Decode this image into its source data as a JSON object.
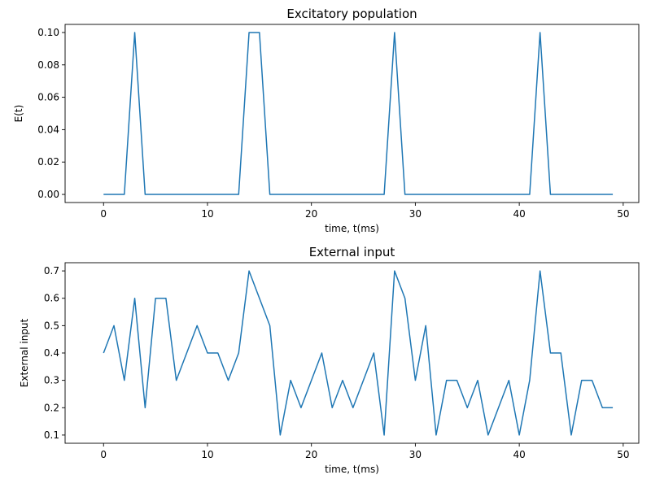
{
  "chart_data": [
    {
      "type": "line",
      "title": "Excitatory population",
      "xlabel": "time, t(ms)",
      "ylabel": "E(t)",
      "xlim": [
        -3.7,
        51.5
      ],
      "ylim": [
        -0.005,
        0.105
      ],
      "xticks": [
        0,
        10,
        20,
        30,
        40,
        50
      ],
      "xtick_labels": [
        "0",
        "10",
        "20",
        "30",
        "40",
        "50"
      ],
      "yticks": [
        0.0,
        0.02,
        0.04,
        0.06,
        0.08,
        0.1
      ],
      "ytick_labels": [
        "0.00",
        "0.02",
        "0.04",
        "0.06",
        "0.08",
        "0.10"
      ],
      "grid": false,
      "series": [
        {
          "color": "#1f77b4",
          "x": [
            0,
            1,
            2,
            3,
            4,
            5,
            6,
            7,
            8,
            9,
            10,
            11,
            12,
            13,
            14,
            15,
            16,
            17,
            18,
            19,
            20,
            21,
            22,
            23,
            24,
            25,
            26,
            27,
            28,
            29,
            30,
            31,
            32,
            33,
            34,
            35,
            36,
            37,
            38,
            39,
            40,
            41,
            42,
            43,
            44,
            45,
            46,
            47,
            48,
            49
          ],
          "y": [
            0,
            0,
            0,
            0.1,
            0,
            0,
            0,
            0,
            0,
            0,
            0,
            0,
            0,
            0,
            0.1,
            0.1,
            0,
            0,
            0,
            0,
            0,
            0,
            0,
            0,
            0,
            0,
            0,
            0,
            0.1,
            0,
            0,
            0,
            0,
            0,
            0,
            0,
            0,
            0,
            0,
            0,
            0,
            0,
            0.1,
            0,
            0,
            0,
            0,
            0,
            0,
            0
          ]
        }
      ]
    },
    {
      "type": "line",
      "title": "External input",
      "xlabel": "time, t(ms)",
      "ylabel": "External input",
      "xlim": [
        -3.7,
        51.5
      ],
      "ylim": [
        0.07,
        0.73
      ],
      "xticks": [
        0,
        10,
        20,
        30,
        40,
        50
      ],
      "xtick_labels": [
        "0",
        "10",
        "20",
        "30",
        "40",
        "50"
      ],
      "yticks": [
        0.1,
        0.2,
        0.3,
        0.4,
        0.5,
        0.6,
        0.7
      ],
      "ytick_labels": [
        "0.1",
        "0.2",
        "0.3",
        "0.4",
        "0.5",
        "0.6",
        "0.7"
      ],
      "grid": false,
      "series": [
        {
          "color": "#1f77b4",
          "x": [
            0,
            1,
            2,
            3,
            4,
            5,
            6,
            7,
            8,
            9,
            10,
            11,
            12,
            13,
            14,
            15,
            16,
            17,
            18,
            19,
            20,
            21,
            22,
            23,
            24,
            25,
            26,
            27,
            28,
            29,
            30,
            31,
            32,
            33,
            34,
            35,
            36,
            37,
            38,
            39,
            40,
            41,
            42,
            43,
            44,
            45,
            46,
            47,
            48,
            49
          ],
          "y": [
            0.4,
            0.5,
            0.3,
            0.6,
            0.2,
            0.6,
            0.6,
            0.3,
            0.4,
            0.5,
            0.4,
            0.4,
            0.3,
            0.4,
            0.7,
            0.6,
            0.5,
            0.1,
            0.3,
            0.2,
            0.3,
            0.4,
            0.2,
            0.3,
            0.2,
            0.3,
            0.4,
            0.1,
            0.7,
            0.6,
            0.3,
            0.5,
            0.1,
            0.3,
            0.3,
            0.2,
            0.3,
            0.1,
            0.2,
            0.3,
            0.1,
            0.3,
            0.7,
            0.4,
            0.4,
            0.1,
            0.3,
            0.3,
            0.2,
            0.2
          ]
        }
      ]
    }
  ]
}
